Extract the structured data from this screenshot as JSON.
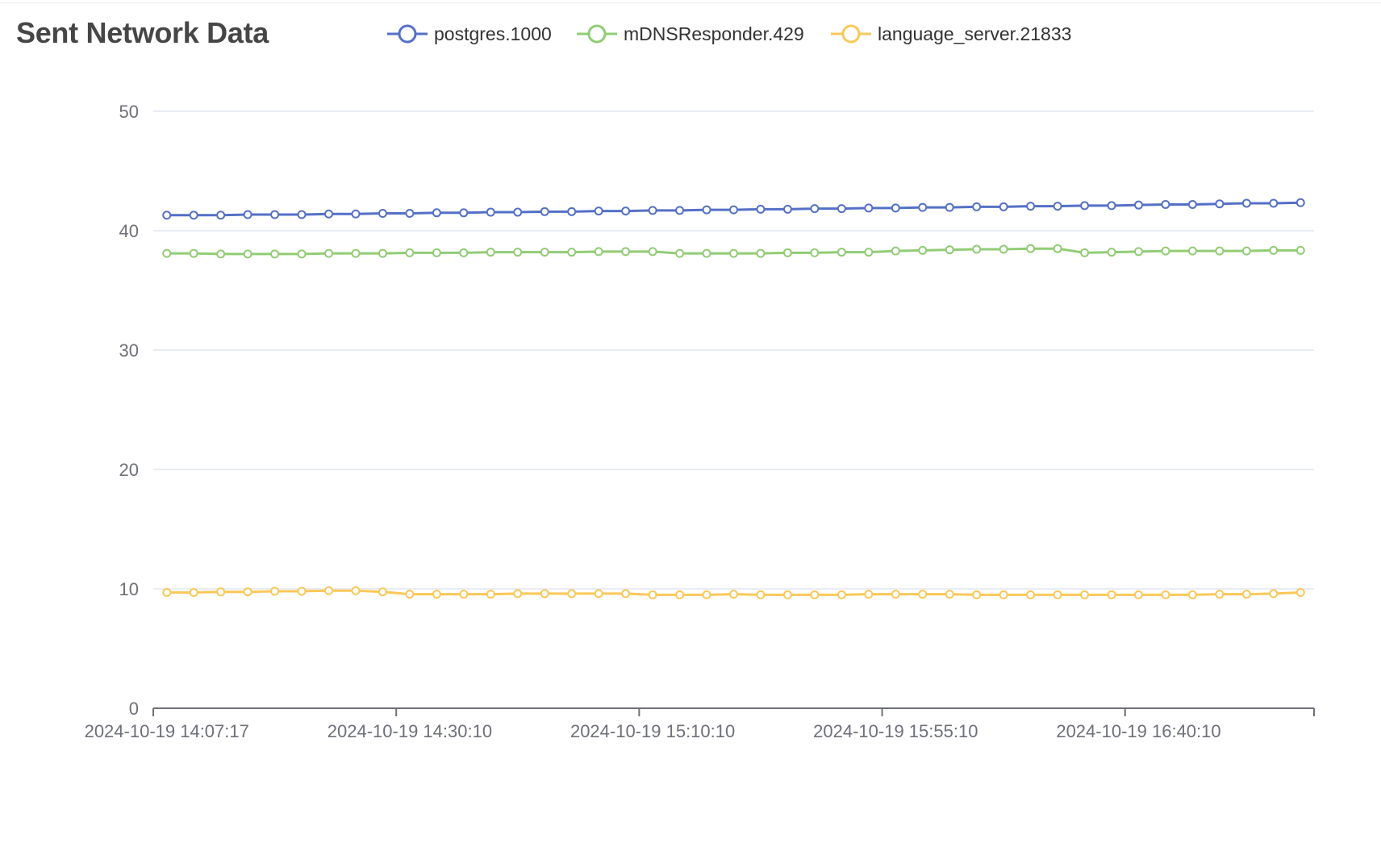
{
  "chart_data": {
    "type": "line",
    "title": "Sent Network Data",
    "xlabel": "",
    "ylabel": "",
    "ylim": [
      0,
      50
    ],
    "yticks": [
      "0",
      "10",
      "20",
      "30",
      "40",
      "50"
    ],
    "xtick_labels": [
      "2024-10-19 14:07:17",
      "2024-10-19 14:30:10",
      "2024-10-19 15:10:10",
      "2024-10-19 15:55:10",
      "2024-10-19 16:40:10"
    ],
    "grid": "horizontal",
    "legend_position": "top",
    "series": [
      {
        "name": "postgres.1000",
        "color": "#5470c6",
        "values": [
          41.3,
          41.3,
          41.3,
          41.35,
          41.35,
          41.35,
          41.4,
          41.4,
          41.45,
          41.45,
          41.5,
          41.5,
          41.55,
          41.55,
          41.6,
          41.6,
          41.65,
          41.65,
          41.7,
          41.7,
          41.75,
          41.75,
          41.8,
          41.8,
          41.85,
          41.85,
          41.9,
          41.9,
          41.95,
          41.95,
          42.0,
          42.0,
          42.05,
          42.05,
          42.1,
          42.1,
          42.15,
          42.2,
          42.2,
          42.25,
          42.3,
          42.3,
          42.35
        ]
      },
      {
        "name": "mDNSResponder.429",
        "color": "#91cc75",
        "values": [
          38.1,
          38.1,
          38.05,
          38.05,
          38.05,
          38.05,
          38.1,
          38.1,
          38.1,
          38.15,
          38.15,
          38.15,
          38.2,
          38.2,
          38.2,
          38.2,
          38.25,
          38.25,
          38.25,
          38.1,
          38.1,
          38.1,
          38.1,
          38.15,
          38.15,
          38.2,
          38.2,
          38.3,
          38.35,
          38.4,
          38.45,
          38.45,
          38.5,
          38.5,
          38.15,
          38.2,
          38.25,
          38.3,
          38.3,
          38.3,
          38.3,
          38.35,
          38.35
        ]
      },
      {
        "name": "language_server.21833",
        "color": "#fac858",
        "values": [
          9.7,
          9.7,
          9.75,
          9.75,
          9.8,
          9.8,
          9.85,
          9.85,
          9.75,
          9.55,
          9.55,
          9.55,
          9.55,
          9.6,
          9.6,
          9.6,
          9.6,
          9.6,
          9.5,
          9.5,
          9.5,
          9.55,
          9.5,
          9.5,
          9.5,
          9.5,
          9.55,
          9.55,
          9.55,
          9.55,
          9.5,
          9.5,
          9.5,
          9.5,
          9.5,
          9.5,
          9.5,
          9.5,
          9.5,
          9.55,
          9.55,
          9.6,
          9.7
        ]
      }
    ]
  },
  "legend": {
    "items": [
      {
        "label": "postgres.1000",
        "color": "#5470c6"
      },
      {
        "label": "mDNSResponder.429",
        "color": "#91cc75"
      },
      {
        "label": "language_server.21833",
        "color": "#fac858"
      }
    ]
  }
}
